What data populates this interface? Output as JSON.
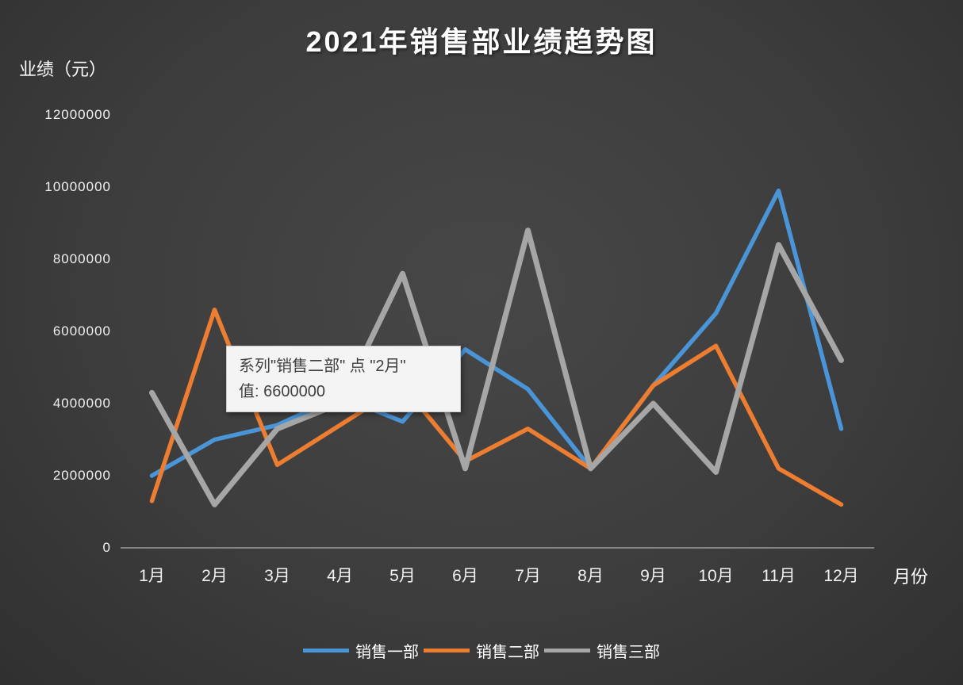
{
  "chart_data": {
    "type": "line",
    "title": "2021年销售部业绩趋势图",
    "ylabel": "业绩（元）",
    "xlabel": "月份",
    "categories": [
      "1月",
      "2月",
      "3月",
      "4月",
      "5月",
      "6月",
      "7月",
      "8月",
      "9月",
      "10月",
      "11月",
      "12月"
    ],
    "series": [
      {
        "name": "销售一部",
        "color": "#4a94d8",
        "values": [
          2000000,
          3000000,
          3400000,
          4200000,
          3500000,
          5500000,
          4400000,
          2200000,
          4500000,
          6500000,
          9900000,
          3300000
        ]
      },
      {
        "name": "销售二部",
        "color": "#ed7d31",
        "values": [
          1300000,
          6600000,
          2300000,
          3400000,
          4500000,
          2400000,
          3300000,
          2200000,
          4500000,
          5600000,
          2200000,
          1200000
        ]
      },
      {
        "name": "销售三部",
        "color": "#a6a6a6",
        "values": [
          4300000,
          1200000,
          3300000,
          4000000,
          7600000,
          2200000,
          8800000,
          2200000,
          4000000,
          2100000,
          8400000,
          5200000
        ]
      }
    ],
    "ylim": [
      0,
      12000000
    ],
    "yticks": [
      0,
      2000000,
      4000000,
      6000000,
      8000000,
      10000000,
      12000000
    ],
    "grid": false,
    "legend_position": "bottom"
  },
  "tooltip": {
    "line1": "系列\"销售二部\" 点 \"2月\"",
    "line2": "值: 6600000"
  },
  "colors": {
    "background": "#3d3d3d",
    "text": "#ffffff",
    "axis_line": "#9b9b9b",
    "tooltip_bg": "#f4f4f4"
  }
}
